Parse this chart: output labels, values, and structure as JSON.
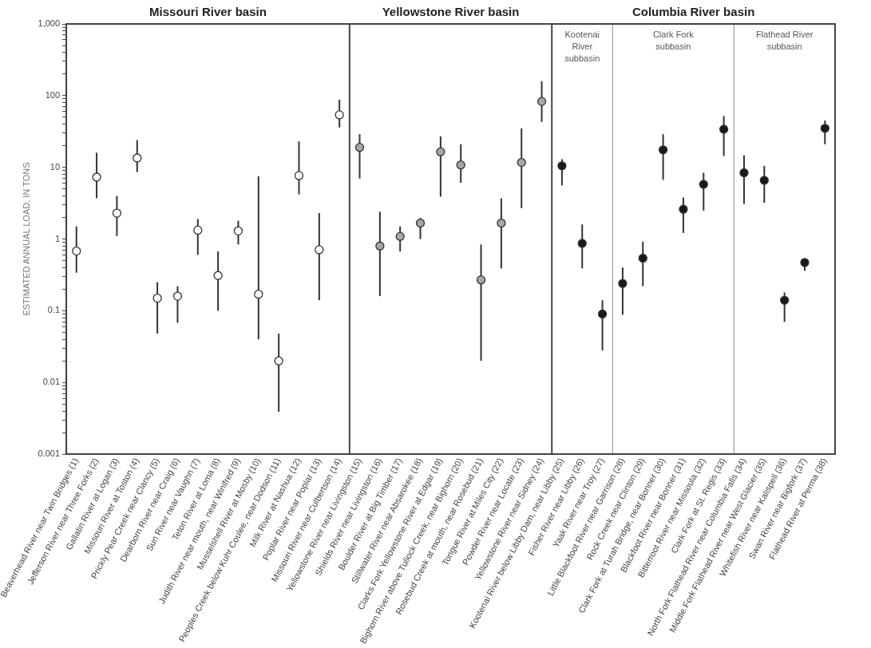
{
  "chart_data": {
    "type": "scatter",
    "ylabel": "ESTIMATED ANNUAL LOAD, IN TONS",
    "log": "y",
    "grid": false,
    "legend": false,
    "marker": "circle",
    "annotations": [
      "Missouri River basin",
      "Yellowstone River basin",
      "Columbia River basin",
      "Kootenai River subbasin",
      "Clark Fork subbasin",
      "Flathead River subbasin"
    ],
    "categories": [
      "Beaverhead River near Twin Bridges (1)",
      "Jefferson River near Three Forks (2)",
      "Gallatin River at Logan (3)",
      "Missouri River at Toston (4)",
      "Prickly Pear Creek near Clancy (5)",
      "Dearborn River near Craig (6)",
      "Sun River near Vaughn (7)",
      "Teton River at Loma (8)",
      "Judith River near mouth, near Winifred (9)",
      "Musselshell River at Mosby (10)",
      "Peoples Creek below Kuhr Coulee, near Dodson (11)",
      "Milk River at Nashua (12)",
      "Poplar River near Poplar (13)",
      "Missouri River near Culbertson (14)",
      "Yellowstone River near Livingston (15)",
      "Shields River near Livingston (16)",
      "Boulder River at Big Timber (17)",
      "Stillwater River near Absarokee (18)",
      "Clarks Fork Yellowstone River at Edgar (19)",
      "Bighorn River above Tullock Creek, near Bighorn (20)",
      "Rosebud Creek at mouth, near Rosebud (21)",
      "Tongue River at Miles City (22)",
      "Powder River near Locate (23)",
      "Yellowstone River near Sidney (24)",
      "Kootenai River below Libby Dam, near Libby (25)",
      "Fisher River near Libby (26)",
      "Yaak River near Troy (27)",
      "Little Blackfoot River near Garrison (28)",
      "Rock Creek near Clinton (29)",
      "Clark Fork at Turah Bridge, near Bonner (30)",
      "Blackfoot River near Bonner (31)",
      "Bitterroot River near Missoula (32)",
      "Clark Fork at St. Regis (33)",
      "North Fork Flathead River near Columbia Falls (34)",
      "Middle Fork Flathead River near West Glacier (35)",
      "Whitefish River near Kalispell (36)",
      "Swan River near Bigfork (37)",
      "Flathead River at Perma (38)"
    ],
    "ylim": [
      0.001,
      1000
    ],
    "yticks": [
      {
        "value": 0.001,
        "label": "0.001"
      },
      {
        "value": 0.002,
        "label": null
      },
      {
        "value": 0.003,
        "label": null
      },
      {
        "value": 0.004,
        "label": null
      },
      {
        "value": 0.005,
        "label": null
      },
      {
        "value": 0.006,
        "label": null
      },
      {
        "value": 0.007,
        "label": null
      },
      {
        "value": 0.008,
        "label": null
      },
      {
        "value": 0.009,
        "label": null
      },
      0.01,
      {
        "value": 0.02,
        "label": null
      },
      {
        "value": 0.03,
        "label": null
      },
      {
        "value": 0.04,
        "label": null
      },
      {
        "value": 0.05,
        "label": null
      },
      {
        "value": 0.06,
        "label": null
      },
      {
        "value": 0.07,
        "label": null
      },
      {
        "value": 0.08,
        "label": null
      },
      {
        "value": 0.09,
        "label": null
      },
      0.1,
      {
        "value": 0.2,
        "label": null
      },
      {
        "value": 0.3,
        "label": null
      },
      {
        "value": 0.4,
        "label": null
      },
      {
        "value": 0.5,
        "label": null
      },
      {
        "value": 0.6,
        "label": null
      },
      {
        "value": 0.7,
        "label": null
      },
      {
        "value": 0.8,
        "label": null
      },
      {
        "value": 0.9,
        "label": null
      },
      1,
      {
        "value": 2,
        "label": null
      },
      {
        "value": 3,
        "label": null
      },
      {
        "value": 4,
        "label": null
      },
      {
        "value": 5,
        "label": null
      },
      {
        "value": 6,
        "label": null
      },
      {
        "value": 7,
        "label": null
      },
      {
        "value": 8,
        "label": null
      },
      {
        "value": 9,
        "label": null
      },
      10,
      {
        "value": 20,
        "label": null
      },
      {
        "value": 30,
        "label": null
      },
      {
        "value": 40,
        "label": null
      },
      {
        "value": 50,
        "label": null
      },
      {
        "value": 60,
        "label": null
      },
      {
        "value": 70,
        "label": null
      },
      {
        "value": 80,
        "label": null
      },
      {
        "value": 90,
        "label": null
      },
      100,
      {
        "value": 200,
        "label": null
      },
      {
        "value": 300,
        "label": null
      },
      {
        "value": 400,
        "label": null
      },
      {
        "value": 500,
        "label": null
      },
      {
        "value": 600,
        "label": null
      },
      {
        "value": 700,
        "label": null
      },
      {
        "value": 800,
        "label": null
      },
      {
        "value": 900,
        "label": null
      },
      {
        "value": 1000,
        "label": "1,000"
      }
    ],
    "series": [
      {
        "color": "#ffffff",
        "values": [
          0.68,
          7.3,
          2.3,
          13.5,
          0.15,
          0.16,
          1.33,
          0.31,
          1.3,
          0.17,
          0.02,
          7.7,
          0.71,
          54,
          null,
          null,
          null,
          null,
          null,
          null,
          null,
          null,
          null,
          null,
          null,
          null,
          null,
          null,
          null,
          null,
          null,
          null,
          null,
          null,
          null,
          null,
          null,
          null
        ],
        "errors": [
          [
            0.34,
            1.5
          ],
          [
            3.7,
            16
          ],
          [
            1.1,
            4
          ],
          [
            8.6,
            24
          ],
          [
            0.048,
            0.25
          ],
          [
            0.068,
            0.22
          ],
          [
            0.6,
            1.9
          ],
          [
            0.1,
            0.67
          ],
          [
            0.84,
            1.8
          ],
          [
            0.04,
            7.5
          ],
          [
            0.0039,
            0.048
          ],
          [
            4.2,
            23
          ],
          [
            0.14,
            2.3
          ],
          [
            36,
            88
          ],
          null,
          null,
          null,
          null,
          null,
          null,
          null,
          null,
          null,
          null,
          null,
          null,
          null,
          null,
          null,
          null,
          null,
          null,
          null,
          null,
          null,
          null,
          null,
          null
        ]
      },
      {
        "color": "#a6a6a6",
        "values": [
          null,
          null,
          null,
          null,
          null,
          null,
          null,
          null,
          null,
          null,
          null,
          null,
          null,
          null,
          19,
          0.8,
          1.09,
          1.67,
          16.5,
          10.8,
          0.27,
          1.67,
          11.7,
          83,
          null,
          null,
          null,
          null,
          null,
          null,
          null,
          null,
          null,
          null,
          null,
          null,
          null,
          null
        ],
        "errors": [
          null,
          null,
          null,
          null,
          null,
          null,
          null,
          null,
          null,
          null,
          null,
          null,
          null,
          null,
          [
            7,
            29
          ],
          [
            0.16,
            2.4
          ],
          [
            0.67,
            1.5
          ],
          [
            1,
            1.97
          ],
          [
            3.9,
            27
          ],
          [
            6.1,
            21
          ],
          [
            0.02,
            0.84
          ],
          [
            0.39,
            3.7
          ],
          [
            2.7,
            35
          ],
          [
            43,
            159
          ],
          null,
          null,
          null,
          null,
          null,
          null,
          null,
          null,
          null,
          null,
          null,
          null,
          null,
          null
        ]
      },
      {
        "color": "#1a1a1a",
        "values": [
          null,
          null,
          null,
          null,
          null,
          null,
          null,
          null,
          null,
          null,
          null,
          null,
          null,
          null,
          null,
          null,
          null,
          null,
          null,
          null,
          null,
          null,
          null,
          null,
          10.5,
          0.87,
          0.09,
          null,
          null,
          null,
          null,
          null,
          null,
          null,
          null,
          null,
          null,
          null
        ],
        "errors": [
          null,
          null,
          null,
          null,
          null,
          null,
          null,
          null,
          null,
          null,
          null,
          null,
          null,
          null,
          null,
          null,
          null,
          null,
          null,
          null,
          null,
          null,
          null,
          null,
          [
            5.6,
            13
          ],
          [
            0.39,
            1.6
          ],
          [
            0.028,
            0.14
          ],
          null,
          null,
          null,
          null,
          null,
          null,
          null,
          null,
          null,
          null,
          null
        ]
      },
      {
        "color": "#1a1a1a",
        "values": [
          null,
          null,
          null,
          null,
          null,
          null,
          null,
          null,
          null,
          null,
          null,
          null,
          null,
          null,
          null,
          null,
          null,
          null,
          null,
          null,
          null,
          null,
          null,
          null,
          null,
          null,
          null,
          0.24,
          0.54,
          17.5,
          2.6,
          5.8,
          34,
          null,
          null,
          null,
          null,
          null
        ],
        "errors": [
          null,
          null,
          null,
          null,
          null,
          null,
          null,
          null,
          null,
          null,
          null,
          null,
          null,
          null,
          null,
          null,
          null,
          null,
          null,
          null,
          null,
          null,
          null,
          null,
          null,
          null,
          null,
          [
            0.088,
            0.4
          ],
          [
            0.22,
            0.92
          ],
          [
            6.7,
            29
          ],
          [
            1.22,
            3.8
          ],
          [
            2.5,
            8.4
          ],
          [
            14.4,
            52
          ],
          null,
          null,
          null,
          null,
          null
        ]
      },
      {
        "color": "#1a1a1a",
        "values": [
          null,
          null,
          null,
          null,
          null,
          null,
          null,
          null,
          null,
          null,
          null,
          null,
          null,
          null,
          null,
          null,
          null,
          null,
          null,
          null,
          null,
          null,
          null,
          null,
          null,
          null,
          null,
          null,
          null,
          null,
          null,
          null,
          null,
          8.4,
          6.6,
          0.14,
          0.47,
          35
        ],
        "errors": [
          null,
          null,
          null,
          null,
          null,
          null,
          null,
          null,
          null,
          null,
          null,
          null,
          null,
          null,
          null,
          null,
          null,
          null,
          null,
          null,
          null,
          null,
          null,
          null,
          null,
          null,
          null,
          null,
          null,
          null,
          null,
          null,
          null,
          [
            3.1,
            14.7
          ],
          [
            3.2,
            10.5
          ],
          [
            0.07,
            0.18
          ],
          [
            0.36,
            0.52
          ],
          [
            21,
            45
          ]
        ]
      }
    ]
  }
}
